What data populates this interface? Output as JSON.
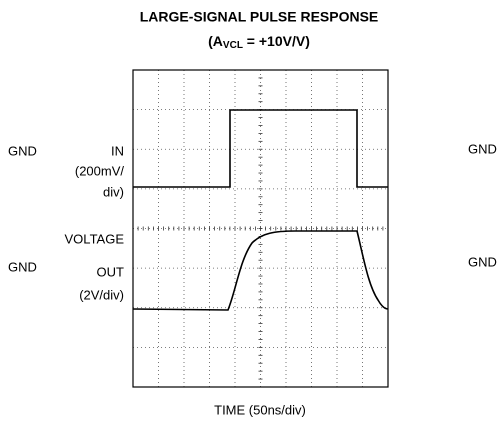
{
  "title": "LARGE-SIGNAL PULSE RESPONSE",
  "subtitle": {
    "open": "(A",
    "sub": "VCL",
    "rest": " = +10V/V)"
  },
  "left_labels": {
    "gnd_top": "GND",
    "in": "IN",
    "in_scale_1": "(200mV/",
    "in_scale_2": "div)",
    "voltage": "VOLTAGE",
    "gnd_bottom": "GND",
    "out": "OUT",
    "out_scale": "(2V/div)"
  },
  "right_labels": {
    "gnd_top": "GND",
    "gnd_bottom": "GND"
  },
  "x_label": "TIME (50ns/div)"
}
